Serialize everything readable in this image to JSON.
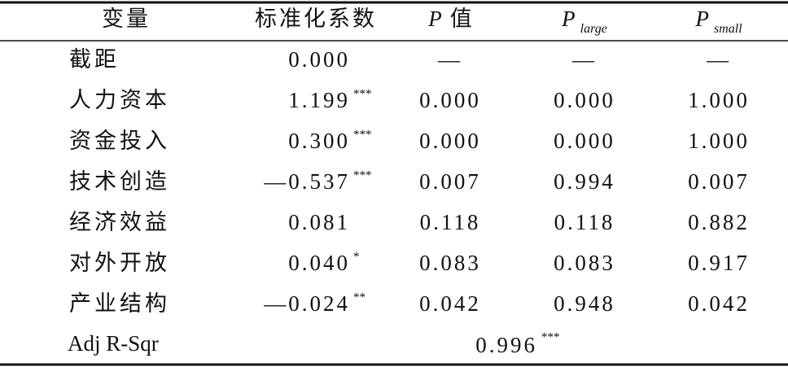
{
  "table": {
    "header": [
      {
        "text": "变量"
      },
      {
        "text": "标准化系数"
      },
      {
        "text": "P",
        "suffix": "值"
      },
      {
        "text": "P",
        "sub": "large"
      },
      {
        "text": "P",
        "sub": "small"
      }
    ],
    "rows": [
      {
        "label": "截距",
        "coef": "0.000",
        "p": "—",
        "p_large": "—",
        "p_small": "—"
      },
      {
        "label": "人力资本",
        "coef": "1.199",
        "stars": "***",
        "p": "0.000",
        "p_large": "0.000",
        "p_small": "1.000"
      },
      {
        "label": "资金投入",
        "coef": "0.300",
        "stars": "***",
        "p": "0.000",
        "p_large": "0.000",
        "p_small": "1.000"
      },
      {
        "label": "技术创造",
        "coef": "—0.537",
        "stars": "***",
        "p": "0.007",
        "p_large": "0.994",
        "p_small": "0.007"
      },
      {
        "label": "经济效益",
        "coef": "0.081",
        "p": "0.118",
        "p_large": "0.118",
        "p_small": "0.882"
      },
      {
        "label": "对外开放",
        "coef": "0.040",
        "stars": "*",
        "p": "0.083",
        "p_large": "0.083",
        "p_small": "0.917"
      },
      {
        "label": "产业结构",
        "coef": "—0.024",
        "stars": "**",
        "p": "0.042",
        "p_large": "0.948",
        "p_small": "0.042"
      }
    ],
    "footer": {
      "label": "Adj R-Sqr",
      "value": "0.996",
      "stars": "***"
    }
  }
}
